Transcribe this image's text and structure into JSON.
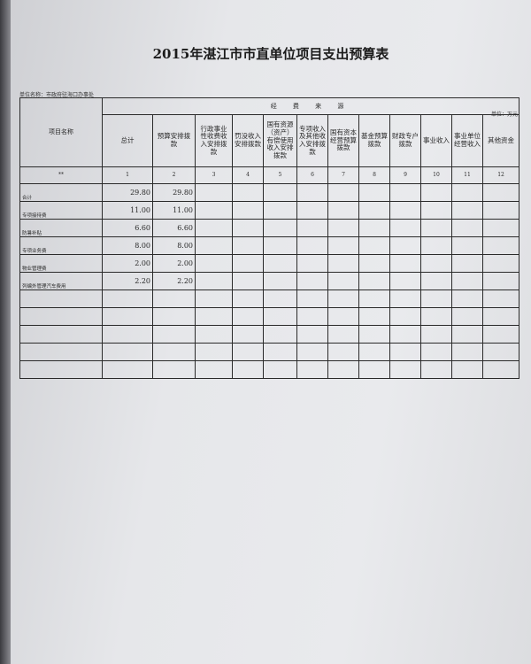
{
  "title": "2015年湛江市市直单位项目支出预算表",
  "unit_name": "单位名称：市政府驻海口办事处",
  "unit": "单位：万元",
  "source_group": "经 费 来 源",
  "headers": [
    "项目名称",
    "总计",
    "预算安排拨款",
    "行政事业性收费收入安排拨款",
    "罚没收入安排拨款",
    "国有资源（资产）有偿使用收入安排拨款",
    "专项收入及其他收入安排拨款",
    "国有资本经营预算拨款",
    "基金预算拨款",
    "财政专户拨款",
    "事业收入",
    "事业单位经营收入",
    "其他资金"
  ],
  "col_numbers": [
    "**",
    "1",
    "2",
    "3",
    "4",
    "5",
    "6",
    "7",
    "8",
    "9",
    "10",
    "11",
    "12"
  ],
  "rows": [
    {
      "name": "合计",
      "total": "29.80",
      "budget": "29.80"
    },
    {
      "name": "专项接待费",
      "total": "11.00",
      "budget": "11.00"
    },
    {
      "name": "防暑补贴",
      "total": "6.60",
      "budget": "6.60"
    },
    {
      "name": "专项业务费",
      "total": "8.00",
      "budget": "8.00"
    },
    {
      "name": "物业管理费",
      "total": "2.00",
      "budget": "2.00"
    },
    {
      "name": "列编外管理汽车费用",
      "total": "2.20",
      "budget": "2.20"
    }
  ],
  "blank_rows": 5
}
